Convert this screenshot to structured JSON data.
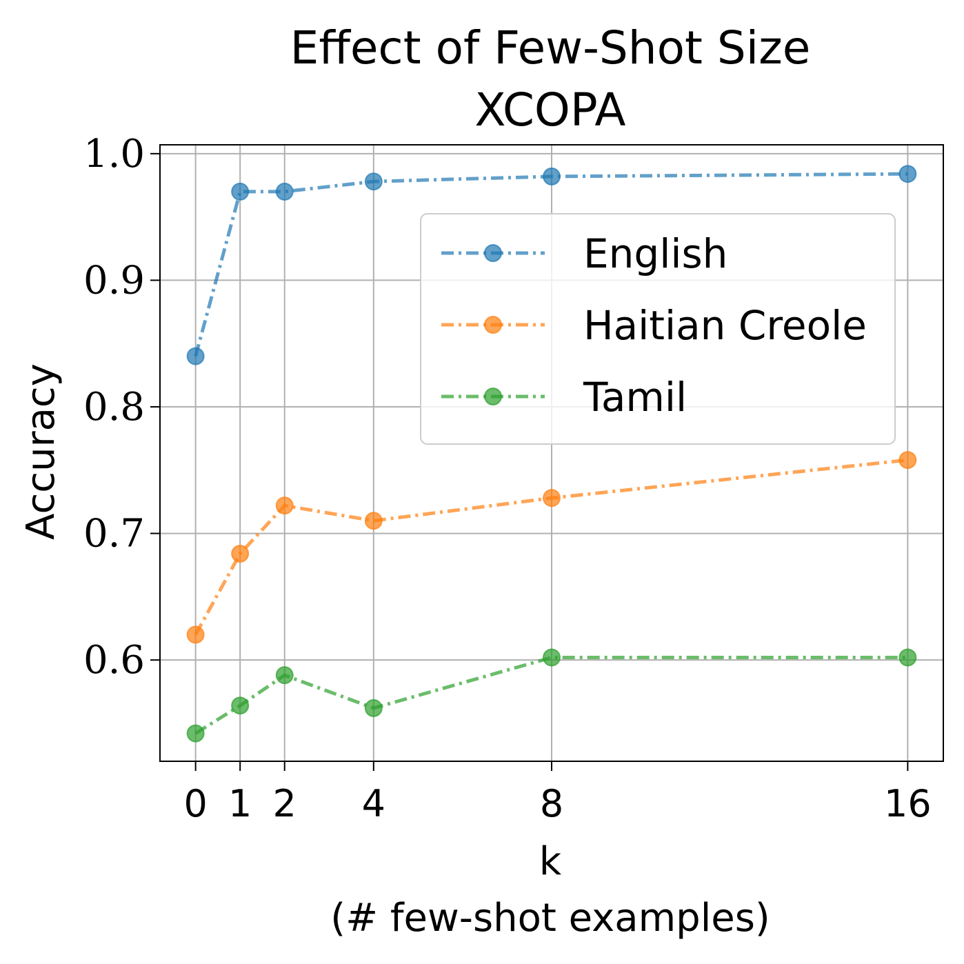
{
  "chart_data": {
    "type": "line",
    "title": "Effect of Few-Shot Size",
    "subtitle": "XCOPA",
    "xlabel": "k",
    "xlabel_line2": "(# few-shot examples)",
    "ylabel": "Accuracy",
    "x": [
      0,
      1,
      2,
      4,
      8,
      16
    ],
    "xlim": [
      -0.8,
      16.8
    ],
    "ylim": [
      0.52,
      1.007
    ],
    "x_ticks": [
      0,
      1,
      2,
      4,
      8,
      16
    ],
    "y_ticks": [
      0.6,
      0.7,
      0.8,
      0.9,
      1.0
    ],
    "x_tick_labels": [
      "0",
      "1",
      "2",
      "4",
      "8",
      "16"
    ],
    "y_tick_labels": [
      "0.6",
      "0.7",
      "0.8",
      "0.9",
      "1.0"
    ],
    "grid": true,
    "line_style": "dash-dot",
    "marker": "circle",
    "legend_position": "upper-right",
    "series": [
      {
        "name": "English",
        "color": "#1f77b4",
        "values": [
          0.84,
          0.97,
          0.97,
          0.978,
          0.982,
          0.984
        ]
      },
      {
        "name": "Haitian Creole",
        "color": "#ff7f0e",
        "values": [
          0.62,
          0.684,
          0.722,
          0.71,
          0.728,
          0.758
        ]
      },
      {
        "name": "Tamil",
        "color": "#2ca02c",
        "values": [
          0.542,
          0.564,
          0.588,
          0.562,
          0.602,
          0.602
        ]
      }
    ]
  }
}
